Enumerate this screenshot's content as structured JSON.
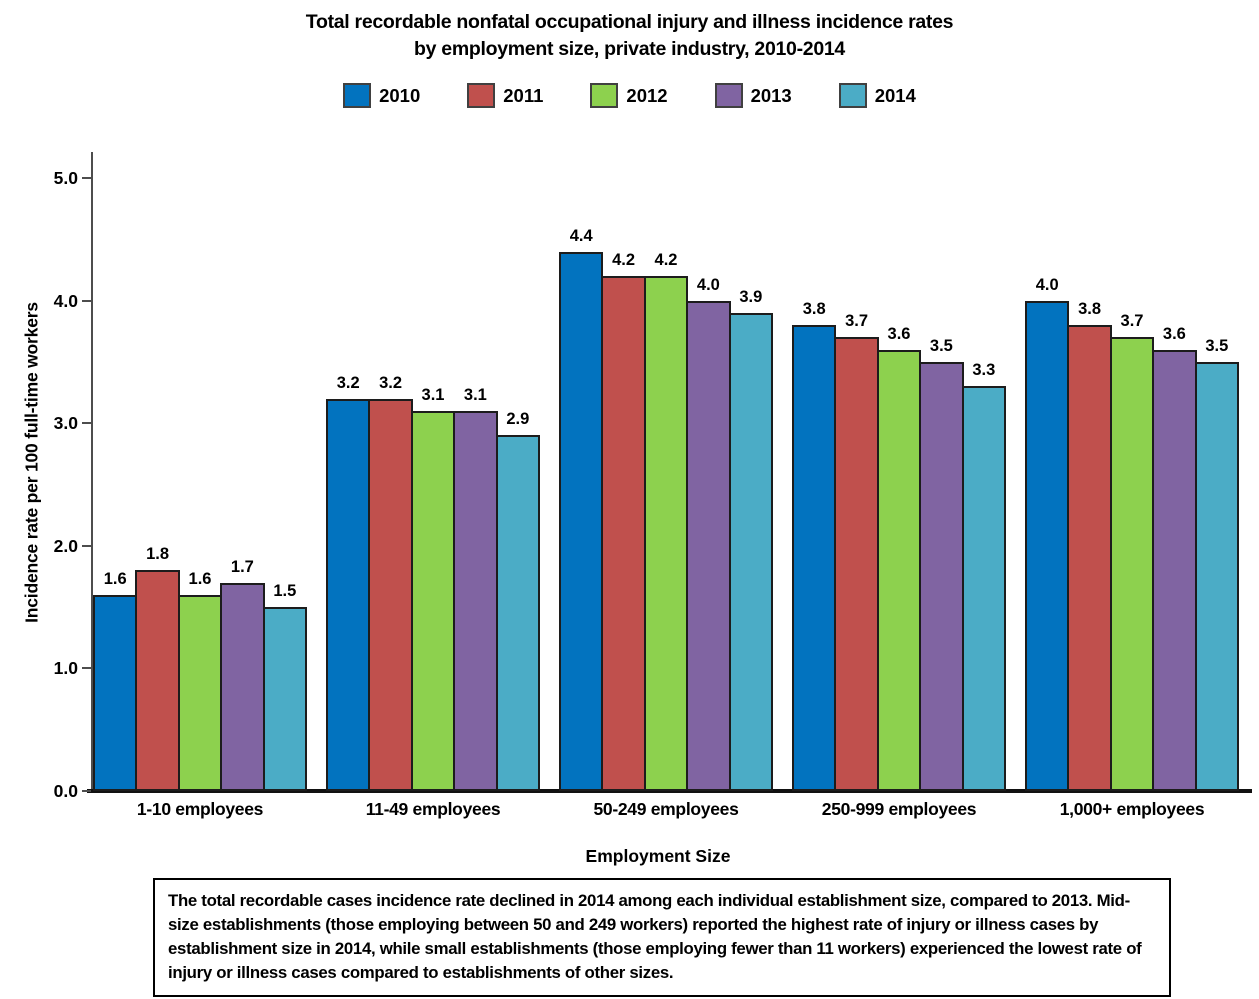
{
  "chart_data": {
    "type": "bar",
    "title_line1": "Total recordable nonfatal occupational injury and illness incidence rates",
    "title_line2": "by employment size, private industry, 2010-2014",
    "categories": [
      "1-10 employees",
      "11-49 employees",
      "50-249 employees",
      "250-999 employees",
      "1,000+ employees"
    ],
    "series": [
      {
        "name": "2010",
        "color": "#0273BF",
        "values": [
          1.6,
          3.2,
          4.4,
          3.8,
          4.0
        ]
      },
      {
        "name": "2011",
        "color": "#C0504D",
        "values": [
          1.8,
          3.2,
          4.2,
          3.7,
          3.8
        ]
      },
      {
        "name": "2012",
        "color": "#8DD14E",
        "values": [
          1.6,
          3.1,
          4.2,
          3.6,
          3.7
        ]
      },
      {
        "name": "2013",
        "color": "#8064A2",
        "values": [
          1.7,
          3.1,
          4.0,
          3.5,
          3.6
        ]
      },
      {
        "name": "2014",
        "color": "#4BACC6",
        "values": [
          1.5,
          2.9,
          3.9,
          3.3,
          3.5
        ]
      }
    ],
    "xlabel": "Employment Size",
    "ylabel": "Incidence rate per 100 full-time workers",
    "ylim": [
      0,
      5
    ],
    "ytick_labels": [
      "0.0",
      "1.0",
      "2.0",
      "3.0",
      "4.0",
      "5.0"
    ],
    "legend_position": "top",
    "grid": false,
    "value_labels_shown": true
  },
  "colors": {
    "axis_line": "#4d4d4d",
    "baseline": "#111111",
    "bar_outline": "#1c1c1c",
    "text": "#000000",
    "background": "#ffffff"
  },
  "caption": "The total recordable cases incidence rate declined in 2014 among each individual establishment size, compared to 2013. Mid-size establishments (those employing between 50 and 249 workers) reported the highest rate of injury or illness cases by establishment size in 2014, while small establishments (those employing fewer than 11 workers) experienced the lowest rate of injury or illness cases compared to establishments of other sizes."
}
